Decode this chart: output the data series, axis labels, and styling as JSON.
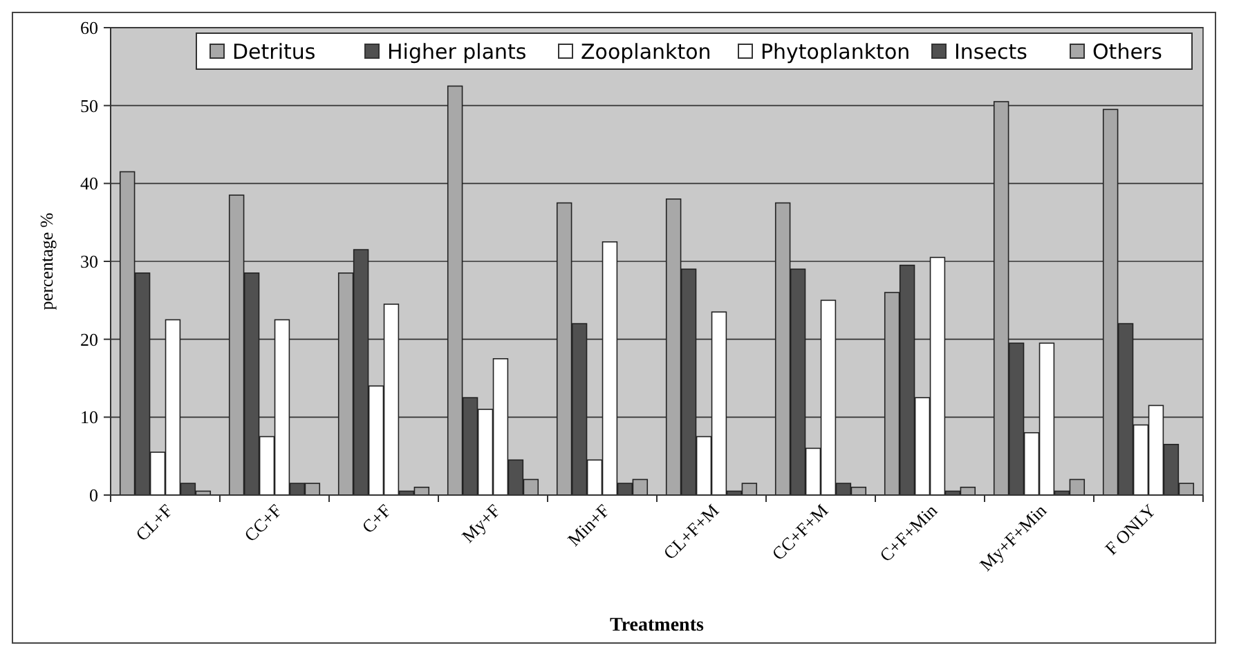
{
  "chart_data": {
    "type": "bar",
    "xlabel": "Treatments",
    "ylabel": "percentage %",
    "categories": [
      "CL+F",
      "CC+F",
      "C+F",
      "My+F",
      "Min+F",
      "CL+F+M",
      "CC+F+M",
      "C+F+Min",
      "My+F+Min",
      "F ONLY"
    ],
    "series": [
      {
        "name": "Detritus",
        "color": "#a8a8a8",
        "values": [
          41.5,
          38.5,
          28.5,
          52.5,
          37.5,
          38,
          37.5,
          26,
          50.5,
          49.5
        ]
      },
      {
        "name": "Higher plants",
        "color": "#505050",
        "values": [
          28.5,
          28.5,
          31.5,
          12.5,
          22,
          29,
          29,
          29.5,
          19.5,
          22
        ]
      },
      {
        "name": "Zooplankton",
        "color": "#ffffff",
        "values": [
          5.5,
          7.5,
          14,
          11,
          4.5,
          7.5,
          6,
          12.5,
          8,
          9
        ]
      },
      {
        "name": "Phytoplankton",
        "color": "#ffffff",
        "values": [
          22.5,
          22.5,
          24.5,
          17.5,
          32.5,
          23.5,
          25,
          30.5,
          19.5,
          11.5
        ]
      },
      {
        "name": "Insects",
        "color": "#505050",
        "values": [
          1.5,
          1.5,
          0.5,
          4.5,
          1.5,
          0.5,
          1.5,
          0.5,
          0.5,
          6.5
        ]
      },
      {
        "name": "Others",
        "color": "#a8a8a8",
        "values": [
          0.5,
          1.5,
          1,
          2,
          2,
          1.5,
          1,
          1,
          2,
          1.5
        ]
      }
    ],
    "ylim": [
      0,
      60
    ],
    "yticks": [
      0,
      10,
      20,
      30,
      40,
      50,
      60
    ],
    "grid": "y",
    "legend": "top right"
  }
}
